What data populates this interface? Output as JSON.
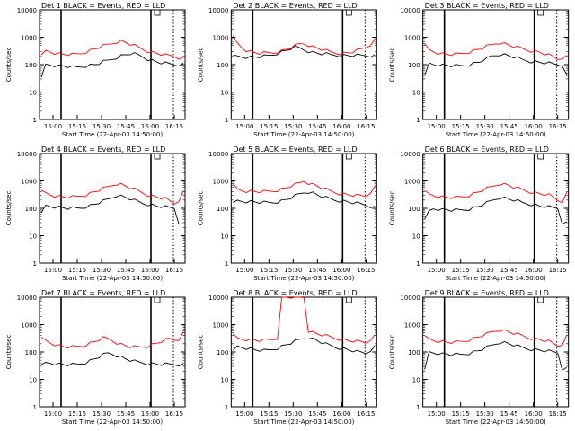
{
  "chart_data": {
    "type": "line",
    "x_ticks": [
      "15:00",
      "15:15",
      "15:30",
      "15:45",
      "16:00",
      "16:15"
    ],
    "y_ticks": [
      "1",
      "10",
      "100",
      "1000",
      "10000"
    ],
    "ylim": [
      1,
      10000
    ],
    "y_scale": "log",
    "xlabel": "Start Time (22-Apr-03 14:50:00)",
    "ylabel": "Counts/sec",
    "series_colors": {
      "events": "#000000",
      "lld": "#ff0000"
    },
    "panels": [
      {
        "title": "Det 1 BLACK = Events, RED = LLD",
        "events": [
          30,
          100,
          100,
          95,
          90,
          90,
          85,
          80,
          80,
          85,
          90,
          95,
          100,
          110,
          125,
          140,
          160,
          185,
          210,
          230,
          250,
          240,
          220,
          190,
          160,
          140,
          125,
          115,
          110,
          105,
          100,
          100,
          105
        ],
        "lld": [
          200,
          320,
          300,
          270,
          250,
          240,
          235,
          230,
          240,
          260,
          290,
          330,
          380,
          430,
          480,
          540,
          600,
          680,
          720,
          650,
          560,
          480,
          420,
          360,
          310,
          280,
          260,
          240,
          220,
          210,
          200,
          180,
          170
        ]
      },
      {
        "title": "Det 2 BLACK = Events, RED = LLD",
        "events": [
          200,
          200,
          195,
          190,
          190,
          190,
          195,
          200,
          210,
          230,
          260,
          290,
          330,
          380,
          430,
          400,
          350,
          310,
          280,
          260,
          250,
          240,
          230,
          225,
          220,
          215,
          215,
          215,
          215,
          215,
          215,
          215,
          215
        ],
        "lld": [
          1000,
          600,
          420,
          340,
          300,
          270,
          260,
          260,
          265,
          275,
          295,
          320,
          360,
          410,
          480,
          560,
          600,
          520,
          450,
          400,
          360,
          320,
          290,
          270,
          260,
          260,
          270,
          290,
          320,
          370,
          440,
          560,
          800
        ]
      },
      {
        "title": "Det 3 BLACK = Events, RED = LLD",
        "events": [
          35,
          110,
          105,
          100,
          95,
          95,
          90,
          90,
          90,
          95,
          100,
          110,
          120,
          140,
          160,
          200,
          220,
          240,
          230,
          210,
          190,
          170,
          150,
          140,
          130,
          125,
          120,
          115,
          110,
          105,
          100,
          100,
          40
        ],
        "lld": [
          500,
          350,
          300,
          270,
          250,
          240,
          235,
          235,
          245,
          265,
          290,
          320,
          360,
          400,
          460,
          520,
          600,
          640,
          580,
          520,
          460,
          420,
          380,
          350,
          320,
          300,
          280,
          250,
          220,
          190,
          160,
          180,
          200
        ]
      },
      {
        "title": "Det 4 BLACK = Events, RED = LLD",
        "events": [
          60,
          125,
          120,
          115,
          110,
          105,
          100,
          100,
          100,
          105,
          115,
          125,
          140,
          160,
          180,
          210,
          250,
          300,
          280,
          250,
          220,
          190,
          170,
          150,
          140,
          130,
          120,
          115,
          110,
          105,
          100,
          30,
          25
        ],
        "lld": [
          400,
          360,
          320,
          290,
          270,
          260,
          255,
          255,
          265,
          285,
          310,
          350,
          400,
          460,
          520,
          600,
          700,
          800,
          750,
          650,
          560,
          480,
          420,
          360,
          310,
          280,
          260,
          240,
          220,
          180,
          150,
          200,
          400
        ]
      },
      {
        "title": "Det 5 BLACK = Events, RED = LLD",
        "events": [
          140,
          190,
          185,
          180,
          175,
          170,
          165,
          160,
          160,
          165,
          175,
          190,
          210,
          240,
          280,
          330,
          380,
          400,
          360,
          310,
          270,
          240,
          220,
          200,
          190,
          180,
          170,
          160,
          150,
          140,
          130,
          120,
          110
        ],
        "lld": [
          700,
          500,
          450,
          430,
          420,
          410,
          400,
          400,
          410,
          430,
          460,
          500,
          560,
          640,
          720,
          820,
          1000,
          850,
          750,
          650,
          560,
          480,
          420,
          380,
          350,
          330,
          310,
          300,
          290,
          280,
          280,
          400,
          600
        ]
      },
      {
        "title": "Det 6 BLACK = Events, RED = LLD",
        "events": [
          35,
          80,
          100,
          95,
          90,
          90,
          85,
          85,
          85,
          90,
          95,
          105,
          115,
          135,
          155,
          185,
          220,
          250,
          240,
          220,
          200,
          180,
          160,
          150,
          140,
          130,
          120,
          115,
          110,
          105,
          100,
          30,
          30
        ],
        "lld": [
          400,
          330,
          300,
          280,
          260,
          250,
          245,
          245,
          255,
          275,
          300,
          340,
          390,
          450,
          520,
          600,
          700,
          800,
          750,
          680,
          600,
          530,
          480,
          430,
          390,
          360,
          340,
          320,
          300,
          250,
          200,
          180,
          350
        ]
      },
      {
        "title": "Det 7 BLACK = Events, RED = LLD",
        "events": [
          30,
          40,
          40,
          38,
          36,
          35,
          34,
          34,
          35,
          38,
          42,
          48,
          56,
          66,
          78,
          90,
          85,
          75,
          65,
          56,
          50,
          45,
          42,
          40,
          38,
          37,
          36,
          35,
          35,
          35,
          35,
          35,
          34
        ],
        "lld": [
          300,
          260,
          220,
          190,
          170,
          155,
          150,
          150,
          155,
          165,
          185,
          210,
          240,
          280,
          320,
          300,
          260,
          220,
          190,
          170,
          155,
          150,
          150,
          155,
          165,
          185,
          210,
          240,
          270,
          300,
          280,
          300,
          500
        ]
      },
      {
        "title": "Det 8 BLACK = Events, RED = LLD",
        "events": [
          100,
          160,
          150,
          140,
          130,
          120,
          115,
          110,
          115,
          125,
          140,
          160,
          185,
          210,
          240,
          280,
          320,
          340,
          300,
          260,
          220,
          190,
          170,
          150,
          140,
          130,
          120,
          110,
          100,
          95,
          90,
          120,
          160
        ],
        "lld": [
          400,
          320,
          300,
          290,
          280,
          270,
          265,
          265,
          275,
          295,
          330,
          10000,
          10000,
          10000,
          10000,
          10000,
          10000,
          600,
          520,
          460,
          420,
          380,
          350,
          320,
          300,
          280,
          260,
          250,
          240,
          230,
          220,
          300,
          400
        ]
      },
      {
        "title": "Det 9 BLACK = Events, RED = LLD",
        "events": [
          20,
          100,
          95,
          90,
          85,
          85,
          80,
          80,
          80,
          85,
          90,
          100,
          110,
          125,
          145,
          170,
          200,
          230,
          220,
          200,
          180,
          160,
          145,
          135,
          125,
          120,
          115,
          110,
          105,
          100,
          95,
          25,
          25
        ],
        "lld": [
          350,
          300,
          270,
          250,
          240,
          230,
          225,
          225,
          235,
          255,
          280,
          310,
          350,
          400,
          450,
          520,
          600,
          650,
          600,
          540,
          480,
          430,
          390,
          350,
          320,
          300,
          280,
          260,
          240,
          200,
          170,
          200,
          380
        ]
      }
    ]
  }
}
